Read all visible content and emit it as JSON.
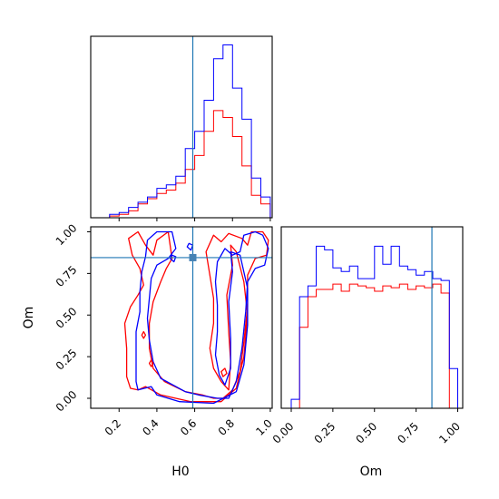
{
  "chart_data": {
    "type": "corner",
    "parameters": [
      "H0",
      "Om"
    ],
    "truth": {
      "H0": 0.59,
      "Om": 0.845
    },
    "colors": {
      "series_a": "#0000ff",
      "series_b": "#ff0000",
      "truth": "#1f77b4"
    },
    "axes": {
      "H0": {
        "label": "H0",
        "lim": [
          0.05,
          1.01
        ],
        "ticks": [
          "0.2",
          "0.4",
          "0.6",
          "0.8",
          "1.0"
        ]
      },
      "Om": {
        "label": "Om",
        "lim": [
          -0.06,
          1.03
        ],
        "ticks": [
          "0.00",
          "0.25",
          "0.50",
          "0.75",
          "1.00"
        ]
      }
    },
    "hist_H0": {
      "edges": [
        0.15,
        0.2,
        0.25,
        0.3,
        0.35,
        0.4,
        0.45,
        0.5,
        0.55,
        0.6,
        0.65,
        0.7,
        0.75,
        0.8,
        0.85,
        0.9,
        0.95,
        1.0
      ],
      "series": [
        {
          "color": "blue",
          "counts": [
            2,
            3,
            6,
            9,
            12,
            17,
            19,
            24,
            40,
            50,
            68,
            92,
            100,
            75,
            57,
            23,
            12
          ]
        },
        {
          "color": "red",
          "counts": [
            1,
            2,
            4,
            8,
            11,
            14,
            16,
            20,
            28,
            36,
            50,
            62,
            58,
            47,
            30,
            13,
            8
          ]
        }
      ]
    },
    "hist_Om": {
      "edges": [
        0.0,
        0.05,
        0.1,
        0.15,
        0.2,
        0.25,
        0.3,
        0.35,
        0.4,
        0.45,
        0.5,
        0.55,
        0.6,
        0.65,
        0.7,
        0.75,
        0.8,
        0.85,
        0.9,
        0.95,
        1.0
      ],
      "series": [
        {
          "color": "blue",
          "counts": [
            5,
            62,
            68,
            90,
            88,
            78,
            76,
            79,
            72,
            72,
            90,
            80,
            90,
            79,
            77,
            74,
            76,
            72,
            71,
            22
          ]
        },
        {
          "color": "red",
          "counts": [
            0,
            45,
            62,
            66,
            66,
            69,
            65,
            69,
            68,
            67,
            65,
            68,
            67,
            69,
            66,
            68,
            67,
            69,
            64,
            0
          ]
        }
      ]
    },
    "contours": [
      {
        "color": "red",
        "points": [
          [
            0.34,
            0.07
          ],
          [
            0.3,
            0.05
          ],
          [
            0.26,
            0.06
          ],
          [
            0.24,
            0.13
          ],
          [
            0.24,
            0.3
          ],
          [
            0.23,
            0.45
          ],
          [
            0.26,
            0.55
          ],
          [
            0.3,
            0.62
          ],
          [
            0.33,
            0.68
          ],
          [
            0.31,
            0.78
          ],
          [
            0.27,
            0.86
          ],
          [
            0.25,
            0.96
          ],
          [
            0.3,
            1.0
          ],
          [
            0.34,
            0.92
          ],
          [
            0.38,
            0.86
          ],
          [
            0.4,
            0.95
          ],
          [
            0.46,
            1.0
          ],
          [
            0.48,
            0.84
          ],
          [
            0.45,
            0.78
          ],
          [
            0.42,
            0.7
          ],
          [
            0.38,
            0.58
          ],
          [
            0.36,
            0.45
          ],
          [
            0.36,
            0.3
          ],
          [
            0.38,
            0.18
          ],
          [
            0.44,
            0.1
          ],
          [
            0.55,
            0.04
          ],
          [
            0.64,
            0.02
          ],
          [
            0.7,
            0.0
          ],
          [
            0.75,
            0.0
          ],
          [
            0.8,
            0.05
          ],
          [
            0.84,
            0.16
          ],
          [
            0.86,
            0.34
          ],
          [
            0.88,
            0.55
          ],
          [
            0.88,
            0.74
          ],
          [
            0.92,
            0.84
          ],
          [
            0.98,
            0.86
          ],
          [
            0.99,
            0.95
          ],
          [
            0.96,
            1.0
          ],
          [
            0.9,
            1.0
          ],
          [
            0.88,
            0.92
          ],
          [
            0.85,
            0.96
          ],
          [
            0.78,
            0.99
          ],
          [
            0.74,
            0.94
          ],
          [
            0.7,
            0.98
          ],
          [
            0.66,
            0.88
          ],
          [
            0.68,
            0.74
          ],
          [
            0.7,
            0.6
          ],
          [
            0.7,
            0.45
          ],
          [
            0.68,
            0.3
          ],
          [
            0.7,
            0.18
          ],
          [
            0.74,
            0.1
          ],
          [
            0.78,
            0.05
          ],
          [
            0.79,
            0.22
          ],
          [
            0.78,
            0.4
          ],
          [
            0.77,
            0.62
          ],
          [
            0.8,
            0.8
          ],
          [
            0.79,
            0.92
          ],
          [
            0.82,
            0.88
          ],
          [
            0.86,
            0.7
          ],
          [
            0.88,
            0.5
          ],
          [
            0.86,
            0.25
          ],
          [
            0.82,
            0.06
          ],
          [
            0.74,
            -0.02
          ],
          [
            0.58,
            -0.02
          ],
          [
            0.42,
            0.02
          ],
          [
            0.34,
            0.07
          ]
        ]
      },
      {
        "color": "blue",
        "points": [
          [
            0.37,
            0.07
          ],
          [
            0.3,
            0.05
          ],
          [
            0.29,
            0.1
          ],
          [
            0.29,
            0.25
          ],
          [
            0.29,
            0.4
          ],
          [
            0.31,
            0.52
          ],
          [
            0.31,
            0.64
          ],
          [
            0.32,
            0.76
          ],
          [
            0.34,
            0.85
          ],
          [
            0.35,
            0.95
          ],
          [
            0.4,
            1.0
          ],
          [
            0.48,
            1.0
          ],
          [
            0.5,
            0.9
          ],
          [
            0.46,
            0.84
          ],
          [
            0.4,
            0.8
          ],
          [
            0.37,
            0.72
          ],
          [
            0.36,
            0.6
          ],
          [
            0.35,
            0.48
          ],
          [
            0.36,
            0.35
          ],
          [
            0.38,
            0.22
          ],
          [
            0.42,
            0.12
          ],
          [
            0.55,
            0.04
          ],
          [
            0.62,
            0.02
          ],
          [
            0.72,
            0.0
          ],
          [
            0.78,
            0.0
          ],
          [
            0.82,
            0.1
          ],
          [
            0.85,
            0.3
          ],
          [
            0.87,
            0.52
          ],
          [
            0.88,
            0.7
          ],
          [
            0.92,
            0.78
          ],
          [
            0.97,
            0.8
          ],
          [
            0.99,
            0.9
          ],
          [
            0.96,
            0.98
          ],
          [
            0.92,
            1.0
          ],
          [
            0.86,
            0.98
          ],
          [
            0.84,
            0.88
          ],
          [
            0.8,
            0.86
          ],
          [
            0.76,
            0.9
          ],
          [
            0.72,
            0.82
          ],
          [
            0.71,
            0.7
          ],
          [
            0.72,
            0.56
          ],
          [
            0.72,
            0.4
          ],
          [
            0.71,
            0.26
          ],
          [
            0.73,
            0.14
          ],
          [
            0.76,
            0.08
          ],
          [
            0.79,
            0.18
          ],
          [
            0.79,
            0.36
          ],
          [
            0.78,
            0.58
          ],
          [
            0.8,
            0.76
          ],
          [
            0.79,
            0.88
          ],
          [
            0.84,
            0.86
          ],
          [
            0.88,
            0.66
          ],
          [
            0.88,
            0.44
          ],
          [
            0.86,
            0.2
          ],
          [
            0.82,
            0.04
          ],
          [
            0.7,
            -0.03
          ],
          [
            0.52,
            -0.02
          ],
          [
            0.4,
            0.02
          ],
          [
            0.37,
            0.07
          ]
        ]
      },
      {
        "color": "red",
        "points": [
          [
            0.33,
            0.36
          ],
          [
            0.34,
            0.38
          ],
          [
            0.33,
            0.4
          ],
          [
            0.32,
            0.38
          ],
          [
            0.33,
            0.36
          ]
        ]
      },
      {
        "color": "red",
        "points": [
          [
            0.37,
            0.19
          ],
          [
            0.38,
            0.21
          ],
          [
            0.37,
            0.23
          ],
          [
            0.36,
            0.21
          ],
          [
            0.37,
            0.19
          ]
        ]
      },
      {
        "color": "red",
        "points": [
          [
            0.75,
            0.13
          ],
          [
            0.77,
            0.15
          ],
          [
            0.76,
            0.18
          ],
          [
            0.74,
            0.16
          ],
          [
            0.75,
            0.13
          ]
        ]
      },
      {
        "color": "blue",
        "points": [
          [
            0.47,
            0.84
          ],
          [
            0.49,
            0.82
          ],
          [
            0.5,
            0.85
          ],
          [
            0.48,
            0.86
          ],
          [
            0.47,
            0.84
          ]
        ]
      },
      {
        "color": "blue",
        "points": [
          [
            0.56,
            0.91
          ],
          [
            0.58,
            0.89
          ],
          [
            0.59,
            0.92
          ],
          [
            0.57,
            0.93
          ],
          [
            0.56,
            0.91
          ]
        ]
      }
    ]
  }
}
